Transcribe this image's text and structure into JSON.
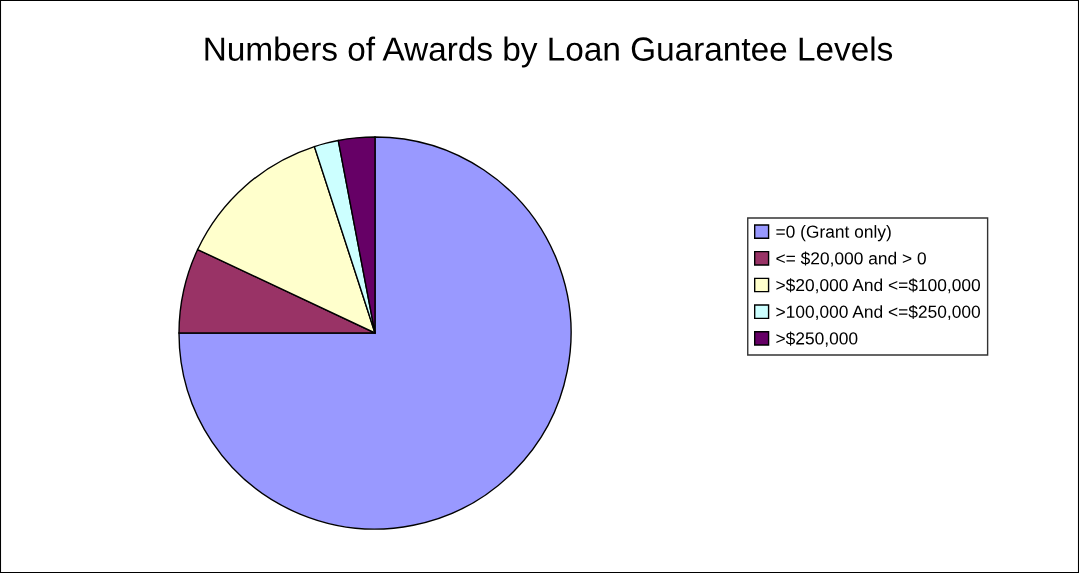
{
  "chart_data": {
    "type": "pie",
    "title": "Numbers of Awards by Loan Guarantee Levels",
    "categories": [
      "=0 (Grant only)",
      "<= $20,000 and > 0",
      ">$20,000 And <=$100,000",
      ">100,000 And <=$250,000",
      ">$250,000"
    ],
    "values": [
      75,
      7,
      13,
      2,
      3
    ],
    "colors": [
      "#9999ff",
      "#993366",
      "#ffffcc",
      "#ccffff",
      "#660066"
    ],
    "legend": "right"
  }
}
